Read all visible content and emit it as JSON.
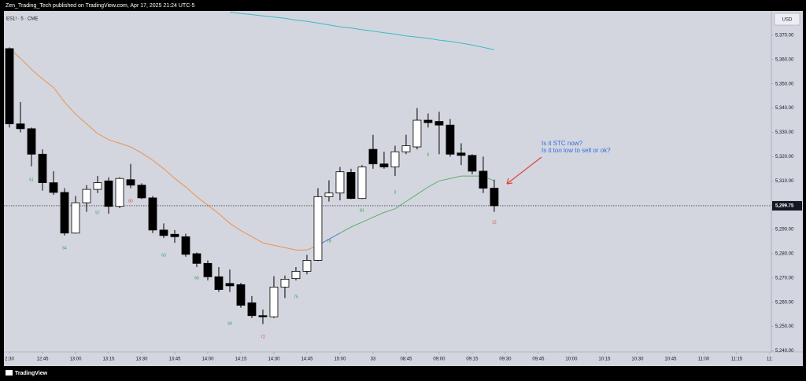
{
  "chart_data": {
    "type": "candlestick",
    "publisher_line": "Zen_Trading_Tech published on TradingView.com, Apr 17, 2025 21:24 UTC-5",
    "symbol": "ES1! · 5 · CME",
    "currency": "USD",
    "brand": "TradingView",
    "open": [
      5364.5,
      5333.5,
      5331.5,
      5321,
      5309.25,
      5305.25,
      5288.5,
      5301,
      5306.5,
      5310,
      5299.5,
      5310.5,
      5308.25,
      5303,
      5289.75,
      5288,
      5287,
      5280,
      5276,
      5270.5,
      5267.75,
      5267.25,
      5259.75,
      5254.5,
      5254,
      5266.25,
      5269.75,
      5272.75,
      5277.25,
      5303.5,
      5305,
      5313.5,
      5302.75,
      5323,
      5317,
      5315.75,
      5322,
      5324,
      5335,
      5334.5,
      5333,
      5321.5,
      5320.5,
      5314,
      5307
    ],
    "high": [
      5365,
      5342.5,
      5332,
      5323,
      5314,
      5307,
      5303.75,
      5308.25,
      5312,
      5311.5,
      5311.5,
      5317,
      5309,
      5303.75,
      5292.5,
      5289.75,
      5288.25,
      5280.5,
      5277.25,
      5274.5,
      5273.5,
      5268,
      5262.5,
      5257,
      5270.75,
      5271,
      5274.5,
      5279.5,
      5307,
      5310.25,
      5315.75,
      5315,
      5316.5,
      5329,
      5322,
      5324.5,
      5329,
      5340,
      5337.75,
      5338.5,
      5335.5,
      5325.5,
      5321,
      5320,
      5310.5
    ],
    "low": [
      5332,
      5330,
      5316,
      5306,
      5304.25,
      5287.5,
      5288.25,
      5297.25,
      5305,
      5296.5,
      5298.75,
      5307,
      5302.5,
      5288.5,
      5286.5,
      5284.5,
      5278.75,
      5274.5,
      5269,
      5264.25,
      5264.25,
      5257.75,
      5253.5,
      5251,
      5253.5,
      5261.75,
      5269,
      5271.5,
      5277,
      5301.5,
      5302,
      5302.5,
      5302.5,
      5315,
      5315,
      5312,
      5321,
      5323,
      5332,
      5321,
      5320,
      5316.5,
      5312.75,
      5305,
      5297.25
    ],
    "close": [
      5333.5,
      5331.5,
      5321,
      5309.25,
      5305.25,
      5288.5,
      5301,
      5306.5,
      5309.25,
      5299.5,
      5311,
      5308.25,
      5303,
      5289.75,
      5287.5,
      5287,
      5279.75,
      5276,
      5270.5,
      5265.25,
      5266.75,
      5258.75,
      5254.5,
      5254,
      5266.25,
      5269.5,
      5272.75,
      5277.25,
      5303.5,
      5305,
      5313.75,
      5302.75,
      5315.75,
      5317,
      5315.75,
      5322,
      5324.5,
      5335,
      5334,
      5333,
      5321,
      5320.5,
      5314,
      5307,
      5299.75
    ],
    "up_color": "#ffffff",
    "down_color": "#000000",
    "lines": [
      {
        "color": "#f0904a",
        "values": [
          5364.5,
          5360.5,
          5356,
          5352,
          5348.5,
          5342.5,
          5337.5,
          5333.5,
          5329.5,
          5327,
          5325.5,
          5324,
          5321.5,
          5318.5,
          5315,
          5311,
          5307.5,
          5303.5,
          5300,
          5296.5,
          5292.5,
          5289.5,
          5287,
          5284.5,
          5283.5,
          5282.5,
          5281.5,
          5281.5,
          5283.5,
          null,
          null,
          null,
          null,
          null,
          null,
          null,
          null,
          null,
          null,
          null,
          null,
          null,
          null,
          null,
          null
        ]
      },
      {
        "color": "#4a7fd6",
        "values": [
          null,
          null,
          null,
          null,
          null,
          null,
          null,
          null,
          null,
          null,
          null,
          null,
          null,
          null,
          null,
          null,
          null,
          null,
          null,
          null,
          null,
          null,
          null,
          null,
          null,
          null,
          null,
          null,
          5283.5,
          5286,
          5288.5,
          null,
          null,
          null,
          null,
          null,
          null,
          null,
          null,
          null,
          null,
          null,
          null,
          null,
          null
        ]
      },
      {
        "color": "#5fae6a",
        "values": [
          null,
          null,
          null,
          null,
          null,
          null,
          null,
          null,
          null,
          null,
          null,
          null,
          null,
          null,
          null,
          null,
          null,
          null,
          null,
          null,
          null,
          null,
          null,
          null,
          null,
          null,
          null,
          null,
          null,
          null,
          5288.5,
          5291,
          5293,
          5295,
          5297,
          5298.5,
          5301.5,
          5304.5,
          5307.5,
          5310,
          5311,
          5312,
          5312,
          5312,
          5310
        ]
      },
      {
        "color": "#3fb8c8",
        "values": [
          null,
          null,
          null,
          null,
          null,
          null,
          null,
          null,
          null,
          null,
          null,
          null,
          null,
          null,
          null,
          null,
          null,
          null,
          null,
          null,
          5379.5,
          5379,
          5378.5,
          5378,
          5377.5,
          5377,
          5376.25,
          5375.75,
          5375,
          5374.25,
          5373.5,
          5373,
          5372.25,
          5371.75,
          5371,
          5370.5,
          5369.75,
          5369.25,
          5368.75,
          5368,
          5367.5,
          5366.75,
          5366,
          5365,
          5364
        ]
      }
    ],
    "bar_labels": [
      {
        "text": "51",
        "color": "#2e9e4f"
      },
      {
        "text": "54",
        "color": "#2e9e4f"
      },
      {
        "text": "57",
        "color": "#2e9e4f"
      },
      {
        "text": "60",
        "color": "#e0443a"
      },
      {
        "text": "63",
        "color": "#2e9e4f"
      },
      {
        "text": "66",
        "color": "#2e9e4f"
      },
      {
        "text": "69",
        "color": "#2e9e4f"
      },
      {
        "text": "72",
        "color": "#e0443a"
      },
      {
        "text": "75",
        "color": "#2e9e4f"
      },
      {
        "text": "78",
        "color": "#2e9e4f"
      },
      {
        "text": "81",
        "color": "#2e9e4f"
      },
      {
        "text": "3",
        "color": "#2e9e4f"
      },
      {
        "text": "6",
        "color": "#2e9e4f"
      },
      {
        "text": "9",
        "color": "#2e9e4f"
      },
      {
        "text": "12",
        "color": "#e0443a"
      }
    ],
    "annotations": [
      "Is it STC now?",
      "Is it too low to sell or ok?"
    ],
    "last_price": {
      "value": 5299.75,
      "label": "5,299.75"
    },
    "xlim": [
      -0.5,
      69.15
    ],
    "xticks": [
      {
        "value": 0,
        "label": "2:30"
      },
      {
        "value": 3,
        "label": "12:45"
      },
      {
        "value": 6,
        "label": "13:00"
      },
      {
        "value": 9,
        "label": "13:15"
      },
      {
        "value": 12,
        "label": "13:30"
      },
      {
        "value": 15,
        "label": "13:45"
      },
      {
        "value": 18,
        "label": "14:00"
      },
      {
        "value": 21,
        "label": "14:15"
      },
      {
        "value": 24,
        "label": "14:30"
      },
      {
        "value": 27,
        "label": "14:45"
      },
      {
        "value": 30,
        "label": "15:00"
      },
      33,
      {
        "value": 36,
        "label": "08:45"
      },
      {
        "value": 39,
        "label": "09:00"
      },
      {
        "value": 42,
        "label": "09:15"
      },
      {
        "value": 45,
        "label": "09:30"
      },
      {
        "value": 48,
        "label": "09:45"
      },
      {
        "value": 51,
        "label": "10:00"
      },
      {
        "value": 54,
        "label": "10:15"
      },
      {
        "value": 57,
        "label": "10:30"
      },
      {
        "value": 60,
        "label": "10:45"
      },
      {
        "value": 63,
        "label": "11:00"
      },
      {
        "value": 66,
        "label": "11:15"
      },
      {
        "value": 69,
        "label": "11:"
      }
    ],
    "ylim": [
      5235,
      5380
    ],
    "yticks": [
      {
        "value": 5370,
        "label": "5,370.00"
      },
      {
        "value": 5360,
        "label": "5,360.00"
      },
      {
        "value": 5350,
        "label": "5,350.00"
      },
      {
        "value": 5340,
        "label": "5,340.00"
      },
      {
        "value": 5330,
        "label": "5,330.00"
      },
      {
        "value": 5320,
        "label": "5,320.00"
      },
      {
        "value": 5310,
        "label": "5,310.00"
      },
      {
        "value": 5300,
        "label": "5,300.00"
      },
      {
        "value": 5290,
        "label": "5,290.00"
      },
      {
        "value": 5280,
        "label": "5,280.00"
      },
      {
        "value": 5270,
        "label": "5,270.00"
      },
      {
        "value": 5260,
        "label": "5,260.00"
      },
      {
        "value": 5250,
        "label": "5,250.00"
      },
      {
        "value": 5240,
        "label": "5,240.00"
      }
    ],
    "grid": false
  }
}
